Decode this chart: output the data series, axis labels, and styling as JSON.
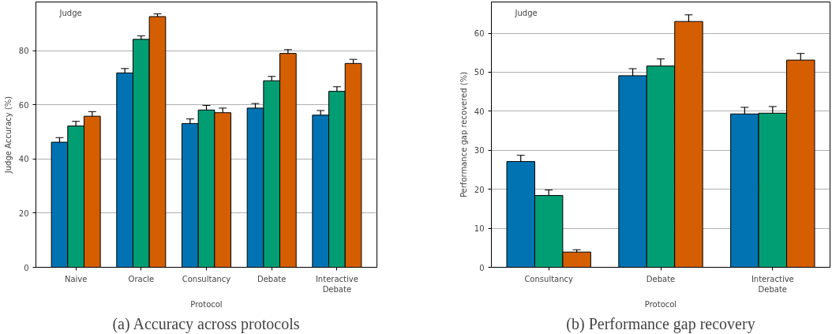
{
  "chart_data": [
    {
      "type": "bar",
      "categories": [
        "Naive",
        "Oracle",
        "Consultancy",
        "Debate",
        "Interactive Debate"
      ],
      "xlabel": "Protocol",
      "ylabel": "Judge Accuracy (%)",
      "ylim": [
        0,
        98
      ],
      "yticks": [
        0,
        20,
        40,
        60,
        80
      ],
      "grid": "y",
      "legend_title": "Judge",
      "series": [
        {
          "color": "#0173b2",
          "values": [
            46.2,
            71.8,
            53.1,
            58.8,
            56.2
          ],
          "errors": [
            1.7,
            1.6,
            1.7,
            1.7,
            1.7
          ]
        },
        {
          "color": "#029e73",
          "values": [
            52.2,
            84.2,
            58.1,
            68.9,
            65.0
          ],
          "errors": [
            1.7,
            1.3,
            1.7,
            1.6,
            1.7
          ]
        },
        {
          "color": "#d55e00",
          "values": [
            55.8,
            92.6,
            57.1,
            79.0,
            75.3
          ],
          "errors": [
            1.7,
            1.0,
            1.7,
            1.4,
            1.5
          ]
        }
      ],
      "annotations": [
        "(a) Accuracy across protocols"
      ]
    },
    {
      "type": "bar",
      "categories": [
        "Consultancy",
        "Debate",
        "Interactive Debate"
      ],
      "xlabel": "Protocol",
      "ylabel": "Performance gap recovered (%)",
      "ylim": [
        0,
        68
      ],
      "yticks": [
        0,
        10,
        20,
        30,
        40,
        50,
        60
      ],
      "grid": "y",
      "legend_title": "Judge",
      "series": [
        {
          "color": "#0173b2",
          "values": [
            27.1,
            49.1,
            39.3
          ],
          "errors": [
            1.6,
            1.8,
            1.7
          ]
        },
        {
          "color": "#029e73",
          "values": [
            18.4,
            51.6,
            39.5
          ],
          "errors": [
            1.4,
            1.8,
            1.7
          ]
        },
        {
          "color": "#d55e00",
          "values": [
            3.9,
            63.0,
            53.1
          ],
          "errors": [
            0.6,
            1.7,
            1.7
          ]
        }
      ],
      "annotations": [
        "(b) Performance gap recovery"
      ]
    }
  ]
}
